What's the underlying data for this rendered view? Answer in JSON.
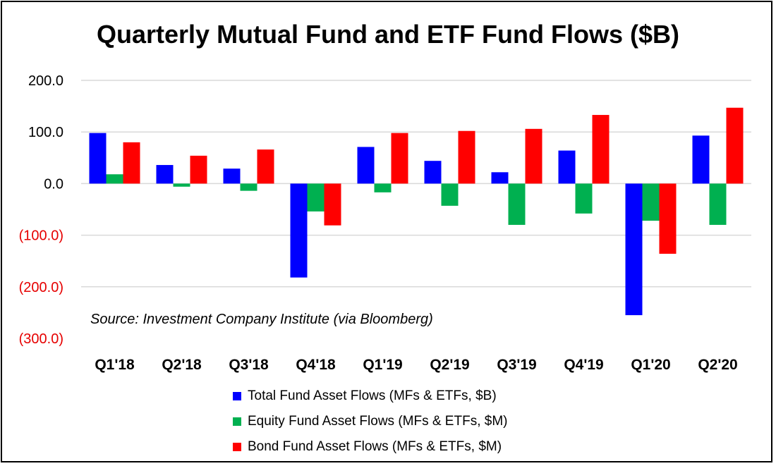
{
  "chart_data": {
    "type": "bar",
    "title": "Quarterly Mutual Fund and ETF Fund Flows ($B)",
    "annotation": "Source: Investment Company Institute (via Bloomberg)",
    "categories": [
      "Q1'18",
      "Q2'18",
      "Q3'18",
      "Q4'18",
      "Q1'19",
      "Q2'19",
      "Q3'19",
      "Q4'19",
      "Q1'20",
      "Q2'20"
    ],
    "series": [
      {
        "name": "Total Fund Asset Flows (MFs & ETFs, $B)",
        "color": "#0000ff",
        "values": [
          98,
          36,
          29,
          -182,
          71,
          44,
          22,
          64,
          -255,
          93
        ]
      },
      {
        "name": "Equity Fund Asset Flows (MFs & ETFs, $M)",
        "color": "#00b050",
        "values": [
          18,
          -6,
          -14,
          -54,
          -17,
          -43,
          -80,
          -58,
          -72,
          -80
        ]
      },
      {
        "name": "Bond Fund Asset Flows (MFs & ETFs, $M)",
        "color": "#ff0000",
        "values": [
          80,
          54,
          66,
          -81,
          98,
          102,
          106,
          133,
          -136,
          147
        ]
      }
    ],
    "ylim": [
      -300,
      200
    ],
    "yticks": [
      {
        "value": 200,
        "label": "200.0",
        "color": "#000000"
      },
      {
        "value": 100,
        "label": "100.0",
        "color": "#000000"
      },
      {
        "value": 0,
        "label": "0.0",
        "color": "#000000"
      },
      {
        "value": -100,
        "label": "(100.0)",
        "color": "#e60000"
      },
      {
        "value": -200,
        "label": "(200.0)",
        "color": "#e60000"
      },
      {
        "value": -300,
        "label": "(300.0)",
        "color": "#e60000"
      }
    ],
    "grid": true,
    "legend_position": "bottom"
  }
}
